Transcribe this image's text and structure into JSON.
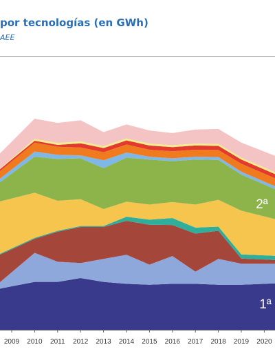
{
  "title": "por tecnologías (en GWh)",
  "source": "AEE",
  "chart_data": {
    "type": "area",
    "title": "por tecnologías (en GWh)",
    "stacked": true,
    "categories": [
      "2009",
      "2010",
      "2011",
      "2012",
      "2013",
      "2014",
      "2015",
      "2016",
      "2017",
      "2018",
      "2019",
      "2020"
    ],
    "ylim": [
      0,
      70
    ],
    "grid": false,
    "legend": "none",
    "annotations": [
      {
        "label": "1ª",
        "series": "s1"
      },
      {
        "label": "2ª",
        "series": "s7"
      }
    ],
    "series": [
      {
        "id": "s1",
        "color": "#3a3a8c",
        "values": [
          13.6,
          15.0,
          15.0,
          16.2,
          15.0,
          14.4,
          14.1,
          14.4,
          14.4,
          14.1,
          14.1,
          14.4
        ]
      },
      {
        "id": "s2",
        "color": "#8fa8dc",
        "values": [
          4.4,
          9.1,
          6.3,
          4.7,
          7.2,
          9.1,
          6.3,
          8.7,
          3.8,
          8.1,
          6.6,
          6.3
        ]
      },
      {
        "id": "s3",
        "color": "#a4463a",
        "values": [
          7.2,
          4.4,
          9.4,
          11.3,
          10.0,
          10.6,
          12.5,
          9.7,
          11.9,
          8.8,
          1.6,
          1.3
        ]
      },
      {
        "id": "s4",
        "color": "#2fae9c",
        "values": [
          0.3,
          0.3,
          0.3,
          0.3,
          0.3,
          1.3,
          1.6,
          2.2,
          1.9,
          1.3,
          1.3,
          1.3
        ]
      },
      {
        "id": "s5",
        "color": "#f6c54e",
        "values": [
          15.6,
          14.1,
          9.4,
          8.4,
          5.3,
          4.7,
          4.7,
          5.0,
          7.2,
          8.4,
          13.7,
          12.2
        ]
      },
      {
        "id": "s6",
        "color": "#ffffff",
        "values": [
          0.0,
          0.0,
          0.0,
          0.0,
          0.0,
          0.0,
          0.0,
          0.0,
          0.0,
          0.0,
          0.0,
          0.0
        ]
      },
      {
        "id": "s7",
        "color": "#8db44b",
        "values": [
          7.8,
          11.3,
          13.1,
          12.8,
          12.8,
          13.8,
          14.1,
          12.8,
          14.1,
          12.5,
          11.3,
          10.0
        ]
      },
      {
        "id": "s8",
        "color": "#7fb7e6",
        "values": [
          1.3,
          1.6,
          1.3,
          0.9,
          2.5,
          1.6,
          0.9,
          0.9,
          0.9,
          0.9,
          0.9,
          0.9
        ]
      },
      {
        "id": "s9",
        "color": "#f07b1f",
        "values": [
          2.5,
          2.8,
          2.5,
          2.5,
          2.5,
          2.5,
          2.2,
          2.2,
          2.2,
          2.2,
          2.5,
          2.5
        ]
      },
      {
        "id": "s10",
        "color": "#e23b2e",
        "values": [
          0.6,
          0.6,
          0.6,
          1.3,
          1.3,
          1.3,
          1.3,
          1.3,
          1.3,
          1.3,
          1.3,
          1.3
        ]
      },
      {
        "id": "s11",
        "color": "#f4ed8a",
        "values": [
          0.3,
          0.6,
          0.6,
          0.6,
          0.6,
          0.6,
          0.6,
          0.6,
          0.6,
          0.6,
          0.6,
          0.6
        ]
      },
      {
        "id": "s12",
        "color": "#f4c4c4",
        "values": [
          5.3,
          6.3,
          6.3,
          6.6,
          4.4,
          4.4,
          4.1,
          3.8,
          4.4,
          4.7,
          4.7,
          5.0
        ]
      }
    ]
  }
}
